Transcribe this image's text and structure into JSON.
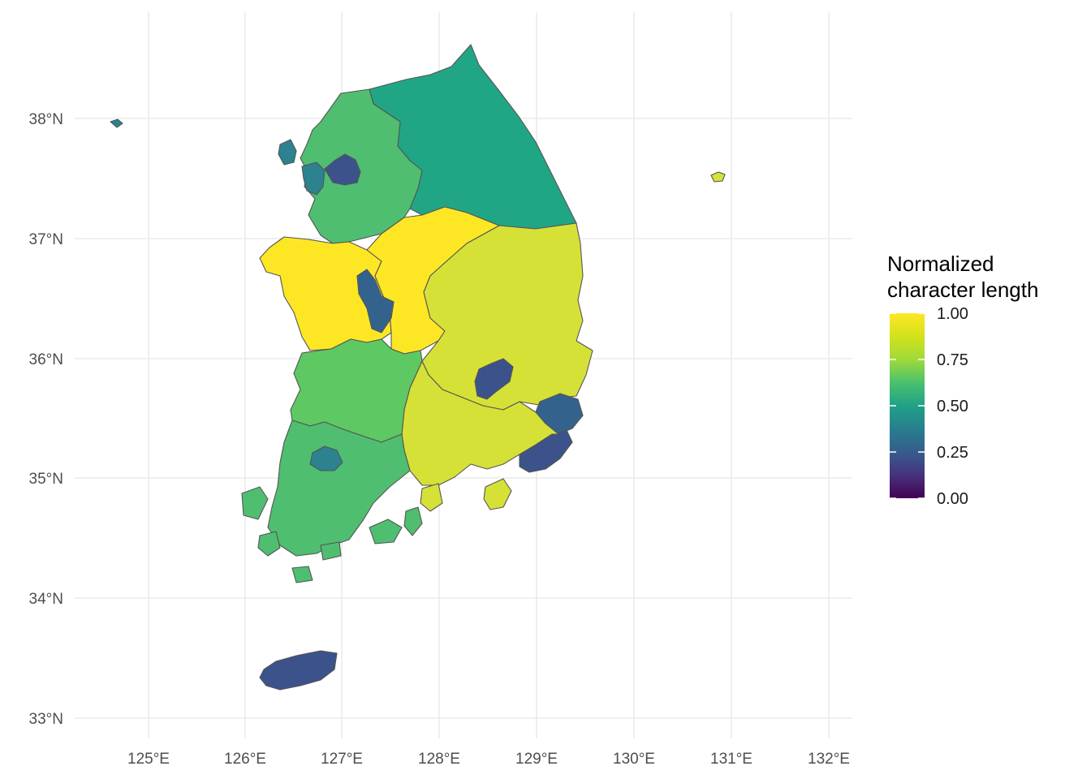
{
  "map": {
    "x_ticks": [
      "125°E",
      "126°E",
      "127°E",
      "128°E",
      "129°E",
      "130°E",
      "131°E",
      "132°E"
    ],
    "y_ticks": [
      "38°N",
      "37°N",
      "36°N",
      "35°N",
      "34°N",
      "33°N"
    ],
    "legend": {
      "title_line1": "Normalized",
      "title_line2": "character length",
      "labels": [
        "1.00",
        "0.75",
        "0.50",
        "0.25",
        "0.00"
      ],
      "colormap": "viridis",
      "range": [
        0,
        1
      ]
    },
    "colors": {
      "v100": "#FDE725",
      "v92": "#D6E137",
      "v75": "#5EC962",
      "v70": "#4FBE70",
      "v55": "#21A685",
      "v45": "#2C828E",
      "v35": "#33638D",
      "v25": "#3B528B",
      "v00": "#440154"
    },
    "regions": [
      {
        "name": "Gyeonggi-do",
        "value": 0.7
      },
      {
        "name": "Gangwon-do",
        "value": 0.55
      },
      {
        "name": "Seoul",
        "value": 0.25
      },
      {
        "name": "Incheon",
        "value": 0.42
      },
      {
        "name": "Chungcheongnam-do",
        "value": 1.0
      },
      {
        "name": "Chungcheongbuk-do",
        "value": 1.0
      },
      {
        "name": "Daejeon",
        "value": 0.35
      },
      {
        "name": "Sejong",
        "value": 0.35
      },
      {
        "name": "Gyeongsangbuk-do",
        "value": 0.92
      },
      {
        "name": "Gyeongsangnam-do",
        "value": 0.92
      },
      {
        "name": "Daegu",
        "value": 0.28
      },
      {
        "name": "Busan",
        "value": 0.28
      },
      {
        "name": "Ulsan",
        "value": 0.3
      },
      {
        "name": "Jeollabuk-do",
        "value": 0.75
      },
      {
        "name": "Jeollanam-do",
        "value": 0.72
      },
      {
        "name": "Gwangju",
        "value": 0.38
      },
      {
        "name": "Jeju-do",
        "value": 0.25
      }
    ]
  }
}
